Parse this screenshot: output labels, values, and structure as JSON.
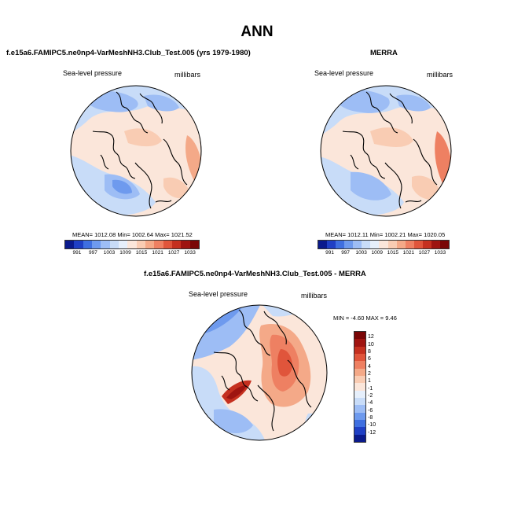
{
  "title": "ANN",
  "panel1": {
    "title": "f.e15a6.FAMIPC5.ne0np4-VarMeshNH3.Club_Test.005 (yrs 1979-1980)",
    "variable": "Sea-level pressure",
    "units": "millibars",
    "stats": "MEAN= 1012.08  Min= 1002.64  Max= 1021.52"
  },
  "panel2": {
    "title": "MERRA",
    "variable": "Sea-level pressure",
    "units": "millibars",
    "stats": "MEAN= 1012.11  Min= 1002.21  Max= 1020.05"
  },
  "panel3": {
    "title": "f.e15a6.FAMIPC5.ne0np4-VarMeshNH3.Club_Test.005 - MERRA",
    "variable": "Sea-level pressure",
    "units": "millibars",
    "stats": "MIN =  -4.60 MAX =  9.46"
  },
  "colorbar_abs": {
    "labels": [
      "991",
      "997",
      "1003",
      "1009",
      "1015",
      "1021",
      "1027",
      "1033"
    ],
    "colors": [
      "#0a1a8c",
      "#1f3fc4",
      "#3f6fe0",
      "#6e9aee",
      "#9dbdf5",
      "#c8dcf8",
      "#e6effb",
      "#fbe6da",
      "#f9ccb3",
      "#f4a988",
      "#ee8062",
      "#e0553b",
      "#c5301f",
      "#9e1410",
      "#7a0606"
    ]
  },
  "colorbar_diff": {
    "labels": [
      "12",
      "10",
      "8",
      "6",
      "4",
      "2",
      "1",
      "-1",
      "-2",
      "-4",
      "-6",
      "-8",
      "-10",
      "-12"
    ],
    "colors": [
      "#7a0606",
      "#a01410",
      "#c5301f",
      "#e0553b",
      "#ee8062",
      "#f4a988",
      "#f9ccb3",
      "#fbe6da",
      "#e6effb",
      "#c8dcf8",
      "#9dbdf5",
      "#6e9aee",
      "#3f6fe0",
      "#1f3fc4",
      "#0a1a8c"
    ]
  }
}
